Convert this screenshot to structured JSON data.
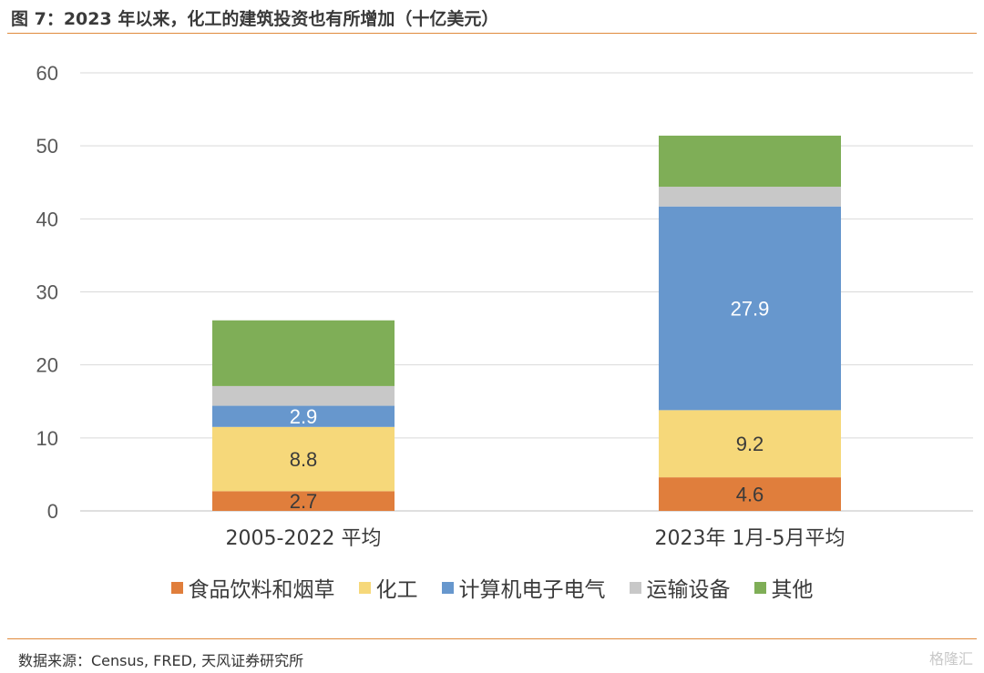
{
  "header": {
    "title": "图 7：2023 年以来，化工的建筑投资也有所增加（十亿美元）"
  },
  "footer": {
    "source": "数据来源：Census, FRED, 天风证券研究所",
    "watermark": "格隆汇"
  },
  "chart_data": {
    "type": "bar",
    "stacked": true,
    "categories": [
      "2005-2022 平均",
      "2023年 1月-5月平均"
    ],
    "series": [
      {
        "name": "食品饮料和烟草",
        "color": "#e07e3c",
        "values": [
          2.7,
          4.6
        ],
        "labels": [
          "2.7",
          "4.6"
        ]
      },
      {
        "name": "化工",
        "color": "#f6d87a",
        "values": [
          8.8,
          9.2
        ],
        "labels": [
          "8.8",
          "9.2"
        ]
      },
      {
        "name": "计算机电子电气",
        "color": "#6797cd",
        "values": [
          2.9,
          27.9
        ],
        "labels": [
          "2.9",
          "27.9"
        ]
      },
      {
        "name": "运输设备",
        "color": "#c8c8c8",
        "values": [
          2.7,
          2.7
        ],
        "labels": [
          "",
          ""
        ]
      },
      {
        "name": "其他",
        "color": "#7fae57",
        "values": [
          9.0,
          7.0
        ],
        "labels": [
          "",
          ""
        ]
      }
    ],
    "ylim": [
      0,
      60
    ],
    "yticks": [
      0,
      10,
      20,
      30,
      40,
      50,
      60
    ],
    "grid": true,
    "legend_position": "bottom"
  }
}
